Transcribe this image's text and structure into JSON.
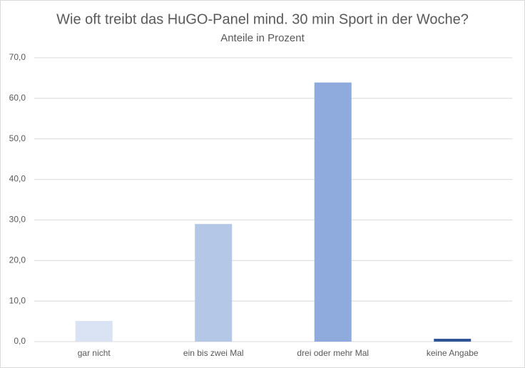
{
  "chart_data": {
    "type": "bar",
    "title": "Wie oft treibt das HuGO-Panel mind. 30 min Sport in der Woche?",
    "subtitle": "Anteile in Prozent",
    "categories": [
      "gar nicht",
      "ein bis zwei Mal",
      "drei oder mehr Mal",
      "keine Angabe"
    ],
    "values": [
      5.1,
      29.0,
      63.9,
      0.7
    ],
    "colors": [
      "#dae3f3",
      "#b4c7e7",
      "#8faadc",
      "#2f5597"
    ],
    "ylim": [
      0,
      70
    ],
    "yticks": [
      {
        "value": 0,
        "label": "0,0"
      },
      {
        "value": 10,
        "label": "10,0"
      },
      {
        "value": 20,
        "label": "20,0"
      },
      {
        "value": 30,
        "label": "30,0"
      },
      {
        "value": 40,
        "label": "40,0"
      },
      {
        "value": 50,
        "label": "50,0"
      },
      {
        "value": 60,
        "label": "60,0"
      },
      {
        "value": 70,
        "label": "70,0"
      }
    ],
    "grid": true
  }
}
